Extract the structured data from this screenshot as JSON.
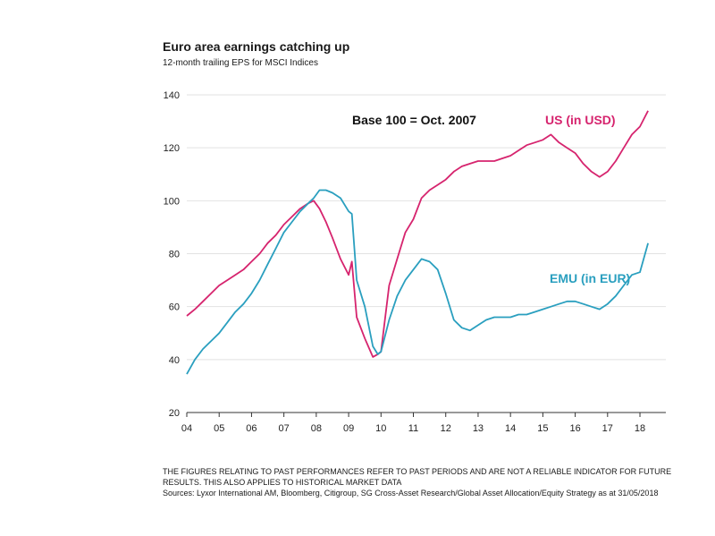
{
  "chart_data": {
    "type": "line",
    "title": "Euro area earnings catching up",
    "subtitle": "12-month trailing EPS for MSCI Indices",
    "annotation": "Base 100 = Oct. 2007",
    "xlabel": "",
    "ylabel": "",
    "xlim": [
      2004.0,
      2018.8
    ],
    "ylim": [
      20,
      140
    ],
    "yticks": [
      20,
      40,
      60,
      80,
      100,
      120,
      140
    ],
    "xticks": [
      {
        "value": 2004,
        "label": "04"
      },
      {
        "value": 2005,
        "label": "05"
      },
      {
        "value": 2006,
        "label": "06"
      },
      {
        "value": 2007,
        "label": "07"
      },
      {
        "value": 2008,
        "label": "08"
      },
      {
        "value": 2009,
        "label": "09"
      },
      {
        "value": 2010,
        "label": "10"
      },
      {
        "value": 2011,
        "label": "11"
      },
      {
        "value": 2012,
        "label": "12"
      },
      {
        "value": 2013,
        "label": "13"
      },
      {
        "value": 2014,
        "label": "14"
      },
      {
        "value": 2015,
        "label": "15"
      },
      {
        "value": 2016,
        "label": "16"
      },
      {
        "value": 2017,
        "label": "17"
      },
      {
        "value": 2018,
        "label": "18"
      }
    ],
    "grid": true,
    "series": [
      {
        "name": "US (in USD)",
        "color": "#d6246e",
        "x": [
          2004.0,
          2004.25,
          2004.5,
          2004.75,
          2005.0,
          2005.25,
          2005.5,
          2005.75,
          2006.0,
          2006.25,
          2006.5,
          2006.75,
          2007.0,
          2007.25,
          2007.5,
          2007.75,
          2007.92,
          2008.1,
          2008.3,
          2008.5,
          2008.75,
          2009.0,
          2009.1,
          2009.25,
          2009.5,
          2009.75,
          2009.9,
          2010.0,
          2010.25,
          2010.5,
          2010.75,
          2011.0,
          2011.25,
          2011.5,
          2011.75,
          2012.0,
          2012.25,
          2012.5,
          2012.75,
          2013.0,
          2013.25,
          2013.5,
          2013.75,
          2014.0,
          2014.25,
          2014.5,
          2014.75,
          2015.0,
          2015.25,
          2015.5,
          2015.75,
          2016.0,
          2016.25,
          2016.5,
          2016.75,
          2017.0,
          2017.25,
          2017.5,
          2017.75,
          2018.0,
          2018.25
        ],
        "values": [
          56.5,
          59,
          62,
          65,
          68,
          70,
          72,
          74,
          77,
          80,
          84,
          87,
          91,
          94,
          97,
          99,
          100,
          97,
          92,
          86,
          78,
          72,
          77,
          56,
          48,
          41,
          42,
          43,
          68,
          78,
          88,
          93,
          101,
          104,
          106,
          108,
          111,
          113,
          114,
          115,
          115,
          115,
          116,
          117,
          119,
          121,
          122,
          123,
          125,
          122,
          120,
          118,
          114,
          111,
          109,
          111,
          115,
          120,
          125,
          128,
          134
        ]
      },
      {
        "name": "EMU (in EUR)",
        "color": "#2a9fbf",
        "x": [
          2004.0,
          2004.25,
          2004.5,
          2004.75,
          2005.0,
          2005.25,
          2005.5,
          2005.75,
          2006.0,
          2006.25,
          2006.5,
          2006.75,
          2007.0,
          2007.25,
          2007.5,
          2007.75,
          2007.92,
          2008.1,
          2008.3,
          2008.5,
          2008.75,
          2009.0,
          2009.1,
          2009.25,
          2009.5,
          2009.75,
          2009.9,
          2010.0,
          2010.25,
          2010.5,
          2010.75,
          2011.0,
          2011.25,
          2011.5,
          2011.75,
          2012.0,
          2012.25,
          2012.5,
          2012.75,
          2013.0,
          2013.25,
          2013.5,
          2013.75,
          2014.0,
          2014.25,
          2014.5,
          2014.75,
          2015.0,
          2015.25,
          2015.5,
          2015.75,
          2016.0,
          2016.25,
          2016.5,
          2016.75,
          2017.0,
          2017.25,
          2017.5,
          2017.75,
          2018.0,
          2018.25
        ],
        "values": [
          34.5,
          40,
          44,
          47,
          50,
          54,
          58,
          61,
          65,
          70,
          76,
          82,
          88,
          92,
          96,
          99,
          101,
          104,
          104,
          103,
          101,
          96,
          95,
          70,
          60,
          45,
          42,
          43,
          55,
          64,
          70,
          74,
          78,
          77,
          74,
          65,
          55,
          52,
          51,
          53,
          55,
          56,
          56,
          56,
          57,
          57,
          58,
          59,
          60,
          61,
          62,
          62,
          61,
          60,
          59,
          61,
          64,
          68,
          72,
          73,
          84
        ]
      }
    ],
    "labels": [
      {
        "text": "US (in USD)",
        "series": 0
      },
      {
        "text": "EMU (in EUR)",
        "series": 1
      }
    ]
  },
  "footer": {
    "note": "THE FIGURES RELATING TO PAST PERFORMANCES REFER TO PAST PERIODS AND ARE NOT A RELIABLE INDICATOR FOR FUTURE RESULTS. THIS ALSO APPLIES TO HISTORICAL MARKET DATA",
    "sources": "Sources: Lyxor International AM, Bloomberg, Citigroup, SG Cross-Asset Research/Global Asset Allocation/Equity Strategy as at 31/05/2018"
  }
}
